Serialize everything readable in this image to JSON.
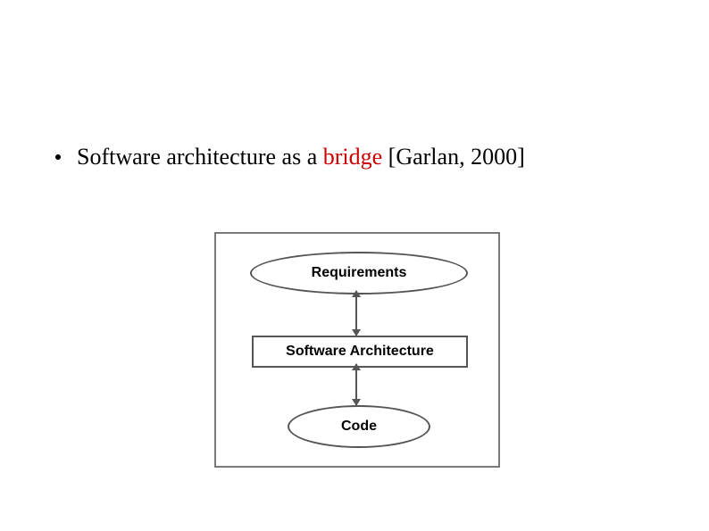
{
  "bullet": {
    "prefix": "Software architecture as a ",
    "highlight": "bridge",
    "suffix": " [Garlan, 2000]"
  },
  "diagram": {
    "type": "flowchart",
    "border_color": "#7a7a7a",
    "shape_border_color": "#555555",
    "background_color": "#ffffff",
    "font_family": "Arial",
    "label_fontsize": 16,
    "label_fontweight": "bold",
    "nodes": {
      "requirements": {
        "label": "Requirements",
        "shape": "ellipse"
      },
      "architecture": {
        "label": "Software Architecture",
        "shape": "rect"
      },
      "code": {
        "label": "Code",
        "shape": "ellipse"
      }
    },
    "edges": [
      {
        "from": "requirements",
        "to": "architecture",
        "bidirectional": true
      },
      {
        "from": "architecture",
        "to": "code",
        "bidirectional": true
      }
    ]
  },
  "colors": {
    "text": "#000000",
    "highlight": "#cc0000"
  }
}
